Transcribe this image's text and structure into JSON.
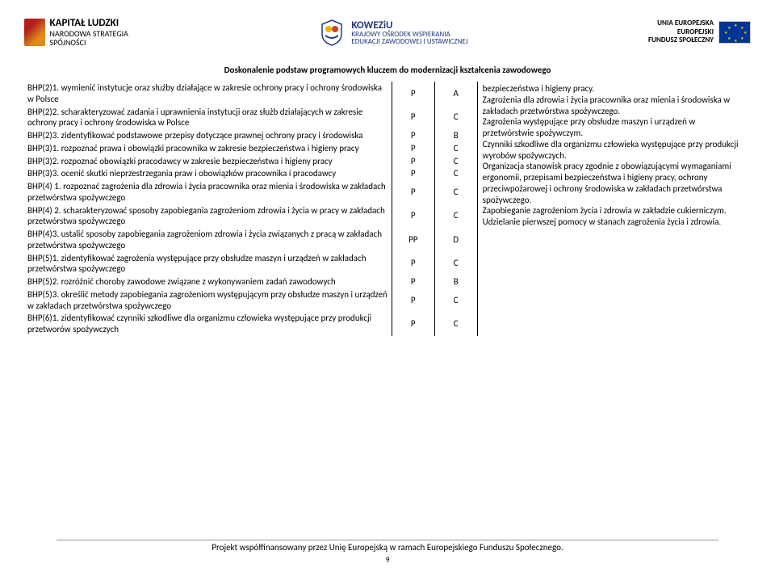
{
  "header": {
    "left": {
      "line1": "KAPITAŁ LUDZKI",
      "line2": "NARODOWA STRATEGIA SPÓJNOŚCI"
    },
    "center": {
      "line1": "KOWEZiU",
      "line2": "KRAJOWY OŚRODEK WSPIERANIA",
      "line3": "EDUKACJI ZAWODOWEJ I USTAWICZNEJ"
    },
    "right": {
      "line1": "UNIA EUROPEJSKA",
      "line2": "EUROPEJSKI",
      "line3": "FUNDUSZ SPOŁECZNY"
    }
  },
  "title": "Doskonalenie podstaw programowych kluczem do modernizacji kształcenia zawodowego",
  "rows": [
    {
      "text": "BHP(2)1. wymienić instytucje oraz służby działające w zakresie ochrony pracy i ochrony środowiska w Polsce",
      "c2": "P",
      "c3": "A"
    },
    {
      "text": "BHP(2)2. scharakteryzować zadania i uprawnienia instytucji oraz służb działających w zakresie ochrony pracy i ochrony środowiska w Polsce",
      "c2": "P",
      "c3": "C"
    },
    {
      "text": "BHP(2)3. zidentyfikować podstawowe przepisy dotyczące prawnej ochrony pracy i środowiska",
      "c2": "P",
      "c3": "B"
    },
    {
      "text": "BHP(3)1. rozpoznać prawa i obowiązki pracownika w zakresie bezpieczeństwa i higieny pracy",
      "c2": "P",
      "c3": "C"
    },
    {
      "text": "BHP(3)2. rozpoznać obowiązki pracodawcy w zakresie bezpieczeństwa i higieny pracy",
      "c2": "P",
      "c3": "C"
    },
    {
      "text": "BHP(3)3. ocenić skutki nieprzestrzegania praw i obowiązków pracownika i pracodawcy",
      "c2": "P",
      "c3": "C"
    },
    {
      "text": "BHP(4) 1. rozpoznać  zagrożenia dla zdrowia i życia pracownika oraz mienia i środowiska  w zakładach przetwórstwa spożywczego",
      "c2": "P",
      "c3": "C"
    },
    {
      "text": "BHP(4) 2. scharakteryzować sposoby zapobiegania zagrożeniom zdrowia i życia w pracy  w zakładach przetwórstwa spożywczego",
      "c2": "P",
      "c3": "C"
    },
    {
      "text": "BHP(4)3. ustalić sposoby zapobiegania zagrożeniom zdrowia i życia związanych z pracą  w zakładach przetwórstwa spożywczego",
      "c2": "PP",
      "c3": "D"
    },
    {
      "text": "BHP(5)1. zidentyfikować zagrożenia występujące przy obsłudze maszyn i urządzeń  w zakładach przetwórstwa spożywczego",
      "c2": "P",
      "c3": "C"
    },
    {
      "text": "BHP(5)2. rozróżnić choroby zawodowe związane z wykonywaniem zadań zawodowych",
      "c2": "P",
      "c3": "B"
    },
    {
      "text": "BHP(5)3. określić metody zapobiegania zagrożeniom występującym przy obsłudze maszyn i urządzeń  w zakładach przetwórstwa spożywczego",
      "c2": "P",
      "c3": "C"
    },
    {
      "text": "BHP(6)1. zidentyfikować czynniki szkodliwe dla organizmu człowieka występujące przy produkcji  przetworów spożywczych",
      "c2": "P",
      "c3": "C"
    }
  ],
  "rightCol": "bezpieczeństwa i higieny pracy.\nZagrożenia dla zdrowia i życia pracownika oraz mienia i środowiska w zakładach przetwórstwa spożywczego.\nZagrożenia występujące przy obsłudze maszyn i urządzeń w przetwórstwie spożywczym.\nCzynniki szkodliwe dla organizmu człowieka występujące przy produkcji wyrobów spożywczych.\nOrganizacja stanowisk pracy zgodnie z obowiązującymi wymaganiami ergonomii, przepisami bezpieczeństwa i higieny pracy, ochrony przeciwpożarowej i ochrony środowiska w zakładach przetwórstwa spożywczego.\nZapobieganie zagrożeniom życia i zdrowia w zakładzie cukierniczym.\nUdzielanie pierwszej pomocy w stanach zagrożenia życia i zdrowia.",
  "footer": {
    "text": "Projekt współfinansowany przez Unię Europejską w ramach Europejskiego Funduszu Społecznego.",
    "page": "9"
  }
}
